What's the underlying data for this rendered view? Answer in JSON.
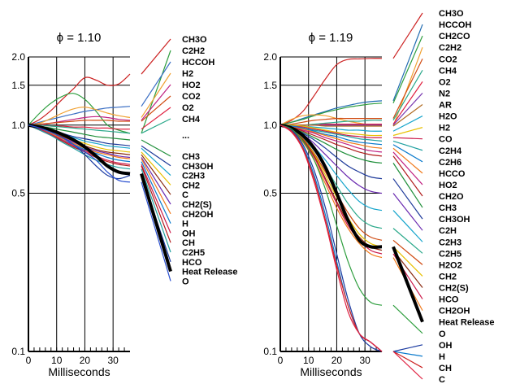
{
  "chart_data": [
    {
      "type": "line",
      "title": "ϕ = 1.10",
      "xlabel": "Milliseconds",
      "ylabel": "",
      "xlim": [
        0,
        36
      ],
      "ylim": [
        0.1,
        2.0
      ],
      "yscale": "log",
      "x_ticks": [
        0,
        10,
        20,
        30
      ],
      "y_ticks": [
        0.1,
        0.5,
        1.0,
        1.5,
        2.0
      ],
      "y_tick_labels": [
        "0.1",
        "0.5",
        "1.0",
        "1.5",
        "2.0"
      ],
      "grid": true,
      "x": [
        0,
        4,
        8,
        12,
        16,
        20,
        24,
        28,
        32,
        36
      ],
      "upper_labels": [
        "CH3O",
        "C2H2",
        "HCCOH",
        "H2",
        "HO2",
        "CO2",
        "O2",
        "CH4"
      ],
      "ellipsis": "...",
      "lower_labels": [
        "CH3",
        "CH3OH",
        "C2H3",
        "CH2",
        "C",
        "CH2(S)",
        "CH2OH",
        "H",
        "OH",
        "CH",
        "C2H5",
        "HCO",
        "Heat Release",
        "O"
      ],
      "series": [
        {
          "name": "CH3O",
          "color": "#cc2222",
          "values": [
            1.0,
            1.06,
            1.16,
            1.3,
            1.45,
            1.62,
            1.58,
            1.5,
            1.52,
            1.68
          ]
        },
        {
          "name": "C2H2",
          "color": "#2e9e3e",
          "values": [
            1.0,
            1.13,
            1.25,
            1.34,
            1.38,
            1.3,
            1.15,
            1.0,
            0.95,
            0.92
          ]
        },
        {
          "name": "HCCOH",
          "color": "#3b6fc4",
          "values": [
            1.0,
            1.03,
            1.06,
            1.09,
            1.12,
            1.15,
            1.17,
            1.19,
            1.2,
            1.21
          ]
        },
        {
          "name": "H2",
          "color": "#f0a030",
          "values": [
            1.0,
            1.02,
            1.07,
            1.13,
            1.18,
            1.2,
            1.17,
            1.13,
            1.1,
            1.08
          ]
        },
        {
          "name": "HO2",
          "color": "#c02080",
          "values": [
            1.0,
            1.0,
            1.02,
            1.04,
            1.06,
            1.08,
            1.09,
            1.08,
            1.06,
            1.05
          ]
        },
        {
          "name": "CO2",
          "color": "#d04a10",
          "values": [
            1.0,
            1.01,
            1.02,
            1.03,
            1.04,
            1.05,
            1.05,
            1.05,
            1.04,
            1.04
          ]
        },
        {
          "name": "O2",
          "color": "#e02040",
          "values": [
            1.0,
            1.0,
            0.99,
            0.99,
            0.98,
            0.98,
            0.97,
            0.97,
            0.96,
            0.96
          ]
        },
        {
          "name": "CH4",
          "color": "#2aa88a",
          "values": [
            1.0,
            1.0,
            0.99,
            0.98,
            0.97,
            0.96,
            0.95,
            0.94,
            0.93,
            0.92
          ]
        },
        {
          "name": "CH3",
          "color": "#1f8f3a",
          "values": [
            1.0,
            0.99,
            0.97,
            0.95,
            0.93,
            0.91,
            0.89,
            0.88,
            0.87,
            0.86
          ]
        },
        {
          "name": "CH3OH",
          "color": "#1e3a9a",
          "values": [
            1.0,
            0.98,
            0.95,
            0.92,
            0.89,
            0.87,
            0.85,
            0.83,
            0.82,
            0.81
          ]
        },
        {
          "name": "C2H3",
          "color": "#17a5cc",
          "values": [
            1.0,
            0.98,
            0.95,
            0.91,
            0.88,
            0.85,
            0.83,
            0.81,
            0.8,
            0.79
          ]
        },
        {
          "name": "CH2",
          "color": "#e8c000",
          "values": [
            1.0,
            0.97,
            0.94,
            0.9,
            0.86,
            0.83,
            0.8,
            0.78,
            0.77,
            0.76
          ]
        },
        {
          "name": "C",
          "color": "#8a2a10",
          "values": [
            1.0,
            0.97,
            0.93,
            0.89,
            0.85,
            0.81,
            0.78,
            0.76,
            0.75,
            0.74
          ]
        },
        {
          "name": "CH2(S)",
          "color": "#6a2ab0",
          "values": [
            1.0,
            0.97,
            0.93,
            0.88,
            0.84,
            0.8,
            0.77,
            0.75,
            0.73,
            0.72
          ]
        },
        {
          "name": "CH2OH",
          "color": "#f07a1a",
          "values": [
            1.0,
            0.96,
            0.92,
            0.87,
            0.83,
            0.79,
            0.76,
            0.74,
            0.72,
            0.71
          ]
        },
        {
          "name": "H",
          "color": "#0a7acc",
          "values": [
            1.0,
            0.96,
            0.91,
            0.86,
            0.82,
            0.78,
            0.75,
            0.72,
            0.7,
            0.69
          ]
        },
        {
          "name": "OH",
          "color": "#cc1a4a",
          "values": [
            1.0,
            0.96,
            0.91,
            0.86,
            0.81,
            0.77,
            0.73,
            0.7,
            0.68,
            0.67
          ]
        },
        {
          "name": "CH",
          "color": "#b01a1a",
          "values": [
            1.0,
            0.95,
            0.9,
            0.85,
            0.8,
            0.76,
            0.72,
            0.69,
            0.67,
            0.66
          ]
        },
        {
          "name": "C2H5",
          "color": "#20a0a0",
          "values": [
            1.0,
            0.95,
            0.9,
            0.84,
            0.79,
            0.74,
            0.7,
            0.67,
            0.65,
            0.64
          ]
        },
        {
          "name": "HCO",
          "color": "#1a3aa0",
          "values": [
            1.0,
            0.97,
            0.93,
            0.88,
            0.82,
            0.74,
            0.66,
            0.6,
            0.58,
            0.6
          ]
        },
        {
          "name": "Heat Release",
          "color": "#000000",
          "values": [
            1.0,
            0.98,
            0.95,
            0.91,
            0.86,
            0.8,
            0.73,
            0.66,
            0.62,
            0.61
          ]
        },
        {
          "name": "O",
          "color": "#2a50d0",
          "values": [
            1.0,
            0.97,
            0.93,
            0.88,
            0.82,
            0.76,
            0.7,
            0.62,
            0.57,
            0.56
          ]
        }
      ]
    },
    {
      "type": "line",
      "title": "ϕ = 1.19",
      "xlabel": "Milliseconds",
      "ylabel": "",
      "xlim": [
        0,
        36
      ],
      "ylim": [
        0.1,
        2.0
      ],
      "yscale": "log",
      "x_ticks": [
        0,
        10,
        20,
        30
      ],
      "y_ticks": [
        0.1,
        0.5,
        1.0,
        1.5,
        2.0
      ],
      "y_tick_labels": [
        "0.1",
        "0.5",
        "1.0",
        "1.5",
        "2.0"
      ],
      "grid": true,
      "x": [
        0,
        4,
        8,
        12,
        16,
        20,
        24,
        28,
        32,
        36
      ],
      "labels": [
        "CH3O",
        "HCCOH",
        "CH2CO",
        "C2H2",
        "CO2",
        "CH4",
        "O2",
        "N2",
        "AR",
        "H2O",
        "H2",
        "CO",
        "C2H4",
        "C2H6",
        "HCCO",
        "HO2",
        "CH2O",
        "CH3",
        "CH3OH",
        "C2H",
        "C2H3",
        "C2H5",
        "H2O2",
        "CH2",
        "CH2(S)",
        "HCO",
        "CH2OH",
        "Heat Release",
        "O",
        "OH",
        "H",
        "CH",
        "C"
      ],
      "series": [
        {
          "name": "CH3O",
          "color": "#cc2222",
          "values": [
            1.0,
            1.05,
            1.15,
            1.35,
            1.6,
            1.85,
            1.95,
            1.96,
            1.97,
            1.97
          ]
        },
        {
          "name": "HCCOH",
          "color": "#1e6ab0",
          "values": [
            1.0,
            1.03,
            1.07,
            1.11,
            1.15,
            1.19,
            1.22,
            1.25,
            1.27,
            1.28
          ]
        },
        {
          "name": "CH2CO",
          "color": "#2e9e3e",
          "values": [
            1.0,
            1.03,
            1.06,
            1.1,
            1.14,
            1.17,
            1.2,
            1.22,
            1.24,
            1.25
          ]
        },
        {
          "name": "C2H2",
          "color": "#f0a030",
          "values": [
            1.0,
            1.06,
            1.1,
            1.11,
            1.1,
            1.07,
            1.04,
            1.02,
            1.0,
            0.99
          ]
        },
        {
          "name": "CO2",
          "color": "#d04a10",
          "values": [
            1.0,
            1.01,
            1.03,
            1.05,
            1.06,
            1.07,
            1.07,
            1.07,
            1.07,
            1.07
          ]
        },
        {
          "name": "CH4",
          "color": "#2aa88a",
          "values": [
            1.0,
            1.0,
            1.0,
            1.01,
            1.02,
            1.03,
            1.04,
            1.04,
            1.05,
            1.05
          ]
        },
        {
          "name": "O2",
          "color": "#e02040",
          "values": [
            1.0,
            1.0,
            1.0,
            1.0,
            1.01,
            1.01,
            1.01,
            1.01,
            1.01,
            1.01
          ]
        },
        {
          "name": "N2",
          "color": "#7a3ab0",
          "values": [
            1.0,
            1.0,
            1.0,
            1.0,
            1.0,
            1.0,
            1.0,
            1.0,
            1.0,
            1.0
          ]
        },
        {
          "name": "AR",
          "color": "#b06a20",
          "values": [
            1.0,
            1.0,
            1.0,
            1.0,
            0.99,
            0.99,
            0.99,
            0.99,
            0.99,
            0.99
          ]
        },
        {
          "name": "H2O",
          "color": "#17a5cc",
          "values": [
            1.0,
            1.0,
            0.99,
            0.98,
            0.97,
            0.96,
            0.95,
            0.95,
            0.94,
            0.94
          ]
        },
        {
          "name": "H2",
          "color": "#e8c000",
          "values": [
            1.0,
            1.0,
            0.99,
            0.97,
            0.95,
            0.93,
            0.92,
            0.91,
            0.9,
            0.9
          ]
        },
        {
          "name": "CO",
          "color": "#cc1a4a",
          "values": [
            1.0,
            0.99,
            0.98,
            0.96,
            0.94,
            0.92,
            0.9,
            0.89,
            0.88,
            0.88
          ]
        },
        {
          "name": "C2H4",
          "color": "#20a0a0",
          "values": [
            1.0,
            0.99,
            0.97,
            0.95,
            0.93,
            0.91,
            0.89,
            0.87,
            0.86,
            0.85
          ]
        },
        {
          "name": "C2H6",
          "color": "#0a7acc",
          "values": [
            1.0,
            0.99,
            0.97,
            0.94,
            0.91,
            0.89,
            0.86,
            0.84,
            0.83,
            0.82
          ]
        },
        {
          "name": "HCCO",
          "color": "#f07a1a",
          "values": [
            1.0,
            0.98,
            0.96,
            0.93,
            0.9,
            0.87,
            0.84,
            0.82,
            0.8,
            0.79
          ]
        },
        {
          "name": "HO2",
          "color": "#c02080",
          "values": [
            1.0,
            0.98,
            0.95,
            0.92,
            0.88,
            0.85,
            0.82,
            0.79,
            0.77,
            0.76
          ]
        },
        {
          "name": "CH2O",
          "color": "#b01a1a",
          "values": [
            1.0,
            0.98,
            0.94,
            0.9,
            0.86,
            0.82,
            0.79,
            0.76,
            0.74,
            0.73
          ]
        },
        {
          "name": "CH3",
          "color": "#1f8f3a",
          "values": [
            1.0,
            0.97,
            0.93,
            0.88,
            0.83,
            0.78,
            0.74,
            0.71,
            0.69,
            0.68
          ]
        },
        {
          "name": "CH3OH",
          "color": "#1e3a9a",
          "values": [
            1.0,
            0.97,
            0.92,
            0.86,
            0.79,
            0.72,
            0.66,
            0.62,
            0.59,
            0.58
          ]
        },
        {
          "name": "C2H",
          "color": "#6a2ab0",
          "values": [
            1.0,
            0.97,
            0.91,
            0.83,
            0.74,
            0.66,
            0.59,
            0.54,
            0.51,
            0.5
          ]
        },
        {
          "name": "C2H3",
          "color": "#17a5cc",
          "values": [
            1.0,
            0.96,
            0.89,
            0.8,
            0.7,
            0.6,
            0.52,
            0.46,
            0.43,
            0.42
          ]
        },
        {
          "name": "C2H5",
          "color": "#2aa88a",
          "values": [
            1.0,
            0.96,
            0.88,
            0.77,
            0.65,
            0.54,
            0.45,
            0.39,
            0.36,
            0.35
          ]
        },
        {
          "name": "H2O2",
          "color": "#d04a10",
          "values": [
            1.0,
            0.95,
            0.87,
            0.75,
            0.62,
            0.5,
            0.41,
            0.35,
            0.32,
            0.31
          ]
        },
        {
          "name": "CH2",
          "color": "#e8c000",
          "values": [
            1.0,
            0.95,
            0.86,
            0.74,
            0.6,
            0.48,
            0.39,
            0.33,
            0.3,
            0.29
          ]
        },
        {
          "name": "CH2(S)",
          "color": "#8a2a10",
          "values": [
            1.0,
            0.95,
            0.86,
            0.73,
            0.58,
            0.46,
            0.37,
            0.32,
            0.29,
            0.28
          ]
        },
        {
          "name": "HCO",
          "color": "#cc1a4a",
          "values": [
            1.0,
            0.95,
            0.85,
            0.72,
            0.57,
            0.45,
            0.36,
            0.31,
            0.28,
            0.27
          ]
        },
        {
          "name": "CH2OH",
          "color": "#f07a1a",
          "values": [
            1.0,
            0.94,
            0.84,
            0.7,
            0.55,
            0.43,
            0.35,
            0.3,
            0.27,
            0.26
          ]
        },
        {
          "name": "Heat Release",
          "color": "#000000",
          "values": [
            1.0,
            0.97,
            0.9,
            0.79,
            0.65,
            0.5,
            0.38,
            0.31,
            0.29,
            0.29
          ]
        },
        {
          "name": "O",
          "color": "#2e9e3e",
          "values": [
            1.0,
            0.96,
            0.85,
            0.7,
            0.52,
            0.36,
            0.25,
            0.19,
            0.165,
            0.16
          ]
        },
        {
          "name": "OH",
          "color": "#1a3aa0",
          "values": [
            1.0,
            0.95,
            0.82,
            0.63,
            0.43,
            0.27,
            0.17,
            0.12,
            0.105,
            0.1
          ]
        },
        {
          "name": "H",
          "color": "#0a7acc",
          "values": [
            1.0,
            0.94,
            0.8,
            0.6,
            0.4,
            0.25,
            0.16,
            0.12,
            0.11,
            0.1
          ]
        },
        {
          "name": "CH",
          "color": "#cc2222",
          "values": [
            1.0,
            0.94,
            0.79,
            0.58,
            0.38,
            0.24,
            0.16,
            0.12,
            0.11,
            0.1
          ]
        },
        {
          "name": "C",
          "color": "#e02040",
          "values": [
            1.0,
            0.93,
            0.78,
            0.56,
            0.37,
            0.23,
            0.15,
            0.12,
            0.11,
            0.1
          ]
        }
      ]
    }
  ]
}
